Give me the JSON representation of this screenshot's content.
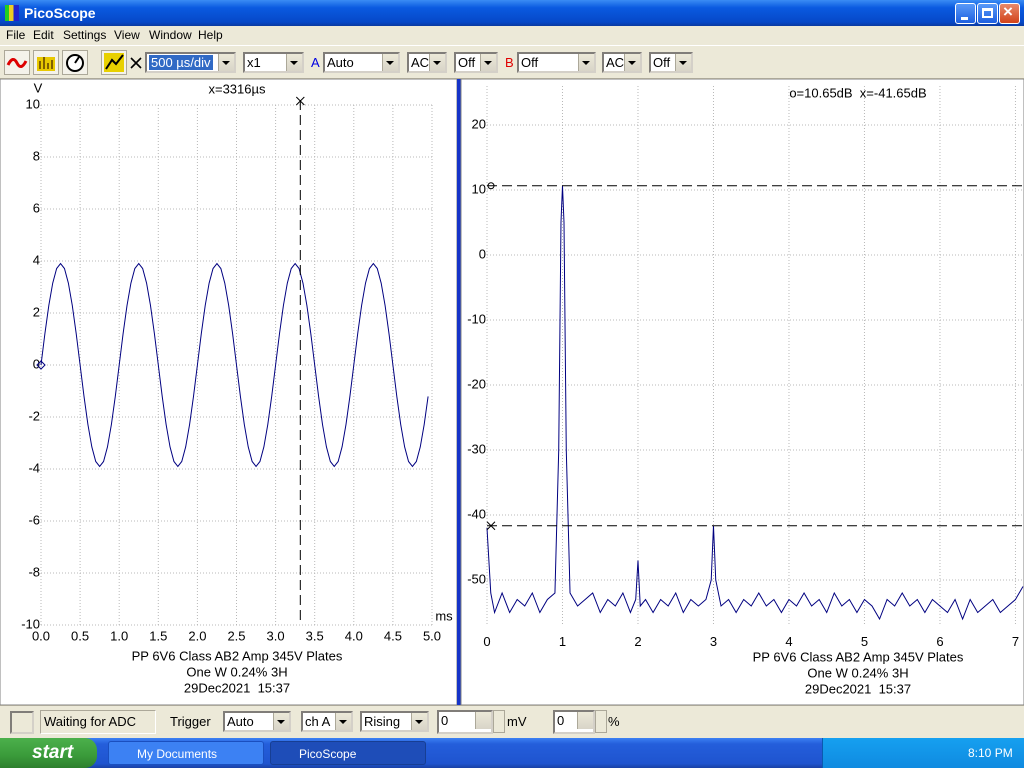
{
  "window": {
    "title": "PicoScope"
  },
  "menu": [
    "File",
    "Edit",
    "Settings",
    "View",
    "Window",
    "Help"
  ],
  "toolbar": {
    "timebase": "500 µs/div",
    "multiplier": "x1",
    "channel_a": {
      "label": "A",
      "range": "Auto",
      "coupling": "AC",
      "filter": "Off"
    },
    "channel_b": {
      "label": "B",
      "range": "Off",
      "coupling": "AC",
      "filter": "Off"
    }
  },
  "chart_data": [
    {
      "type": "line",
      "y_label": "V",
      "x_label": "ms",
      "cursor_label": "x=3316µs",
      "cursor_x": 3.316,
      "caption": [
        "PP 6V6 Class AB2 Amp 345V Plates",
        "One W 0.24% 3H",
        "29Dec2021  15:37"
      ],
      "xlim": [
        0,
        5
      ],
      "ylim": [
        -10,
        10
      ],
      "xticks": [
        {
          "value": 0,
          "label": "0.0"
        },
        0.5,
        {
          "value": 1,
          "label": "1.0"
        },
        1.5,
        {
          "value": 2,
          "label": "2.0"
        },
        2.5,
        {
          "value": 3,
          "label": "3.0"
        },
        3.5,
        {
          "value": 4,
          "label": "4.0"
        },
        4.5,
        {
          "value": 5,
          "label": "5.0"
        }
      ],
      "yticks": [
        10,
        8,
        6,
        4,
        2,
        0,
        -2,
        -4,
        -6,
        -8,
        -10
      ],
      "grid": true,
      "x": [
        0,
        0.05,
        0.1,
        0.15,
        0.2,
        0.25,
        0.3,
        0.35,
        0.4,
        0.45,
        0.5,
        0.55,
        0.6,
        0.65,
        0.7,
        0.75,
        0.8,
        0.85,
        0.9,
        0.95,
        1,
        1.05,
        1.1,
        1.15,
        1.2,
        1.25,
        1.3,
        1.35,
        1.4,
        1.45,
        1.5,
        1.55,
        1.6,
        1.65,
        1.7,
        1.75,
        1.8,
        1.85,
        1.9,
        1.95,
        2,
        2.05,
        2.1,
        2.15,
        2.2,
        2.25,
        2.3,
        2.35,
        2.4,
        2.45,
        2.5,
        2.55,
        2.6,
        2.65,
        2.7,
        2.75,
        2.8,
        2.85,
        2.9,
        2.95,
        3,
        3.05,
        3.1,
        3.15,
        3.2,
        3.25,
        3.3,
        3.35,
        3.4,
        3.45,
        3.5,
        3.55,
        3.6,
        3.65,
        3.7,
        3.75,
        3.8,
        3.85,
        3.9,
        3.95,
        4,
        4.05,
        4.1,
        4.15,
        4.2,
        4.25,
        4.3,
        4.35,
        4.4,
        4.45,
        4.5,
        4.55,
        4.6,
        4.65,
        4.7,
        4.75,
        4.8,
        4.85,
        4.9,
        4.95
      ],
      "series": [
        {
          "color": "#000080",
          "values": [
            0,
            1.21,
            2.29,
            3.15,
            3.71,
            3.9,
            3.71,
            3.15,
            2.29,
            1.21,
            0,
            -1.21,
            -2.29,
            -3.15,
            -3.71,
            -3.9,
            -3.71,
            -3.15,
            -2.29,
            -1.21,
            0,
            1.21,
            2.29,
            3.15,
            3.71,
            3.9,
            3.71,
            3.15,
            2.29,
            1.21,
            0,
            -1.21,
            -2.29,
            -3.15,
            -3.71,
            -3.9,
            -3.71,
            -3.15,
            -2.29,
            -1.21,
            0,
            1.21,
            2.29,
            3.15,
            3.71,
            3.9,
            3.71,
            3.15,
            2.29,
            1.21,
            0,
            -1.21,
            -2.29,
            -3.15,
            -3.71,
            -3.9,
            -3.71,
            -3.15,
            -2.29,
            -1.21,
            0,
            1.21,
            2.29,
            3.15,
            3.71,
            3.9,
            3.71,
            3.15,
            2.29,
            1.21,
            0,
            -1.21,
            -2.29,
            -3.15,
            -3.71,
            -3.9,
            -3.71,
            -3.15,
            -2.29,
            -1.21,
            0,
            1.21,
            2.29,
            3.15,
            3.71,
            3.9,
            3.71,
            3.15,
            2.29,
            1.21,
            0,
            -1.21,
            -2.29,
            -3.15,
            -3.71,
            -3.9,
            -3.71,
            -3.15,
            -2.29,
            -1.21
          ]
        }
      ]
    },
    {
      "type": "line",
      "cursor_label": "o=10.65dB  x=-41.65dB",
      "cursor_levels": [
        10.65,
        -41.65
      ],
      "caption": [
        "PP 6V6 Class AB2 Amp 345V Plates",
        "One W 0.24% 3H",
        "29Dec2021  15:37"
      ],
      "xlim": [
        0,
        7.1
      ],
      "ylim": [
        -57,
        26
      ],
      "xticks": [
        0,
        1,
        2,
        3,
        4,
        5,
        6,
        7
      ],
      "yticks": [
        20,
        10,
        0,
        -10,
        -20,
        -30,
        -40,
        -50
      ],
      "grid": true,
      "x": [
        0,
        0.05,
        0.1,
        0.2,
        0.3,
        0.4,
        0.5,
        0.6,
        0.7,
        0.8,
        0.9,
        0.95,
        0.98,
        1,
        1.02,
        1.05,
        1.1,
        1.2,
        1.3,
        1.4,
        1.5,
        1.6,
        1.7,
        1.8,
        1.9,
        1.97,
        2,
        2.03,
        2.1,
        2.2,
        2.3,
        2.4,
        2.5,
        2.6,
        2.7,
        2.8,
        2.9,
        2.97,
        3,
        3.03,
        3.1,
        3.2,
        3.3,
        3.4,
        3.5,
        3.6,
        3.7,
        3.8,
        3.9,
        4,
        4.1,
        4.2,
        4.3,
        4.4,
        4.5,
        4.6,
        4.7,
        4.8,
        4.9,
        5,
        5.1,
        5.2,
        5.3,
        5.4,
        5.5,
        5.6,
        5.7,
        5.8,
        5.9,
        6,
        6.1,
        6.2,
        6.3,
        6.4,
        6.5,
        6.6,
        6.7,
        6.8,
        6.9,
        7,
        7.1
      ],
      "series": [
        {
          "color": "#000080",
          "values": [
            -42,
            -52,
            -55,
            -52,
            -55,
            -53,
            -54,
            -52,
            -55,
            -53,
            -52,
            -30,
            5,
            10.65,
            5,
            -30,
            -52,
            -54,
            -53,
            -52,
            -55,
            -53,
            -54,
            -52,
            -55,
            -53,
            -47,
            -54,
            -53,
            -55,
            -53,
            -54,
            -52,
            -55,
            -53,
            -54,
            -53,
            -50,
            -41.65,
            -50,
            -54,
            -53,
            -55,
            -53,
            -54,
            -52,
            -54,
            -53,
            -55,
            -53,
            -54,
            -52,
            -54,
            -53,
            -55,
            -52,
            -54,
            -53,
            -55,
            -53,
            -54,
            -56,
            -53,
            -54,
            -52,
            -54,
            -53,
            -55,
            -53,
            -54,
            -55,
            -53,
            -56,
            -53,
            -55,
            -54,
            -53,
            -55,
            -54,
            -53,
            -51
          ]
        }
      ]
    }
  ],
  "status_bar": {
    "message": "Waiting for ADC",
    "trigger_label": "Trigger",
    "trigger_mode": "Auto",
    "trigger_channel": "ch A",
    "trigger_edge": "Rising",
    "trigger_level": "0",
    "level_unit": "mV",
    "delay": "0",
    "delay_unit": "%"
  },
  "taskbar": {
    "start": "start",
    "tasks": [
      "My Documents",
      "PicoScope"
    ],
    "clock": "8:10 PM"
  }
}
